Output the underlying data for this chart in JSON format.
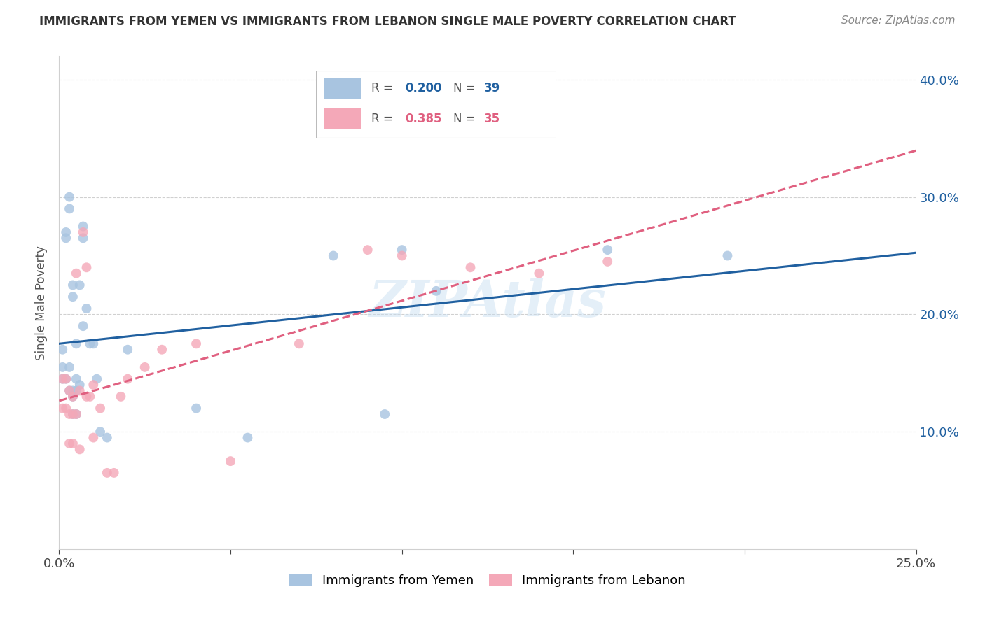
{
  "title": "IMMIGRANTS FROM YEMEN VS IMMIGRANTS FROM LEBANON SINGLE MALE POVERTY CORRELATION CHART",
  "source": "Source: ZipAtlas.com",
  "ylabel": "Single Male Poverty",
  "xlim": [
    0.0,
    0.25
  ],
  "ylim": [
    0.0,
    0.42
  ],
  "xticks": [
    0.0,
    0.05,
    0.1,
    0.15,
    0.2,
    0.25
  ],
  "yticks": [
    0.0,
    0.1,
    0.2,
    0.3,
    0.4
  ],
  "yemen_color": "#a8c4e0",
  "lebanon_color": "#f4a8b8",
  "yemen_line_color": "#2060a0",
  "lebanon_line_color": "#e06080",
  "r_yemen": 0.2,
  "n_yemen": 39,
  "r_lebanon": 0.385,
  "n_lebanon": 35,
  "yemen_x": [
    0.001,
    0.001,
    0.001,
    0.002,
    0.002,
    0.002,
    0.003,
    0.003,
    0.003,
    0.003,
    0.004,
    0.004,
    0.004,
    0.004,
    0.004,
    0.005,
    0.005,
    0.005,
    0.005,
    0.006,
    0.006,
    0.007,
    0.007,
    0.007,
    0.008,
    0.009,
    0.01,
    0.011,
    0.012,
    0.014,
    0.02,
    0.04,
    0.055,
    0.08,
    0.095,
    0.1,
    0.11,
    0.16,
    0.195
  ],
  "yemen_y": [
    0.17,
    0.155,
    0.145,
    0.27,
    0.265,
    0.145,
    0.3,
    0.29,
    0.155,
    0.135,
    0.225,
    0.215,
    0.135,
    0.13,
    0.115,
    0.175,
    0.145,
    0.135,
    0.115,
    0.225,
    0.14,
    0.275,
    0.265,
    0.19,
    0.205,
    0.175,
    0.175,
    0.145,
    0.1,
    0.095,
    0.17,
    0.12,
    0.095,
    0.25,
    0.115,
    0.255,
    0.22,
    0.255,
    0.25
  ],
  "lebanon_x": [
    0.001,
    0.001,
    0.002,
    0.002,
    0.003,
    0.003,
    0.003,
    0.004,
    0.004,
    0.004,
    0.005,
    0.005,
    0.006,
    0.006,
    0.007,
    0.008,
    0.008,
    0.009,
    0.01,
    0.01,
    0.012,
    0.014,
    0.016,
    0.018,
    0.02,
    0.025,
    0.03,
    0.04,
    0.05,
    0.07,
    0.09,
    0.1,
    0.12,
    0.14,
    0.16
  ],
  "lebanon_y": [
    0.145,
    0.12,
    0.145,
    0.12,
    0.135,
    0.115,
    0.09,
    0.13,
    0.115,
    0.09,
    0.235,
    0.115,
    0.135,
    0.085,
    0.27,
    0.24,
    0.13,
    0.13,
    0.14,
    0.095,
    0.12,
    0.065,
    0.065,
    0.13,
    0.145,
    0.155,
    0.17,
    0.175,
    0.075,
    0.175,
    0.255,
    0.25,
    0.24,
    0.235,
    0.245
  ],
  "watermark": "ZIPAtlas",
  "background_color": "#ffffff",
  "grid_color": "#d0d0d0"
}
